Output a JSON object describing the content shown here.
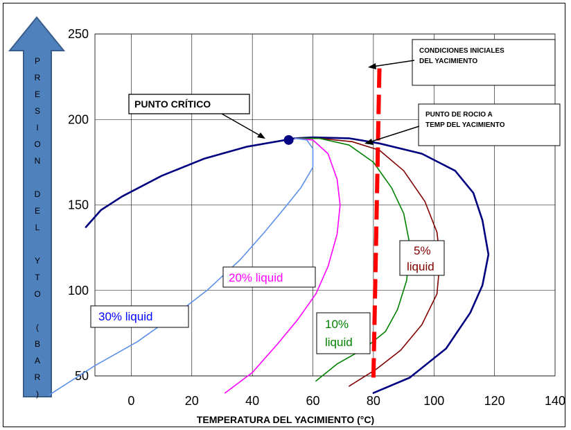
{
  "chart_data": {
    "type": "line",
    "xlabel": "TEMPERATURA DEL YACIMIENTO (°C)",
    "ylabel": "PRESION DEL YTO (BAR)",
    "xlim": [
      -12,
      140
    ],
    "ylim": [
      50,
      250
    ],
    "x_ticks": [
      "0",
      "20",
      "40",
      "60",
      "80",
      "100",
      "120",
      "140"
    ],
    "y_ticks": [
      "50",
      "100",
      "150",
      "200",
      "250"
    ],
    "grid": true,
    "series": [
      {
        "color": "#000080",
        "points": [
          [
            -15,
            137
          ],
          [
            -10,
            147
          ],
          [
            -3,
            155
          ],
          [
            10,
            167
          ],
          [
            24,
            177
          ],
          [
            38,
            184
          ],
          [
            51,
            188
          ],
          [
            54,
            189
          ],
          [
            60,
            189.5
          ],
          [
            72,
            189
          ],
          [
            82,
            186
          ],
          [
            96,
            180
          ],
          [
            107,
            170
          ],
          [
            113,
            157
          ],
          [
            116,
            141
          ],
          [
            118,
            121
          ],
          [
            116,
            103
          ],
          [
            112,
            87
          ],
          [
            104,
            66
          ],
          [
            92,
            49
          ],
          [
            80,
            40
          ]
        ]
      },
      {
        "name": "5% liquid",
        "color": "#800000",
        "points": [
          [
            54,
            189
          ],
          [
            62,
            189
          ],
          [
            73,
            187
          ],
          [
            82,
            182
          ],
          [
            90,
            170
          ],
          [
            97,
            152
          ],
          [
            101,
            134
          ],
          [
            102,
            118
          ],
          [
            101,
            98
          ],
          [
            96,
            80
          ],
          [
            89,
            65
          ],
          [
            81,
            54
          ],
          [
            72,
            44
          ]
        ]
      },
      {
        "name": "10% liquid",
        "color": "#008000",
        "points": [
          [
            54,
            189
          ],
          [
            62,
            189
          ],
          [
            72,
            185
          ],
          [
            80,
            175
          ],
          [
            86,
            160
          ],
          [
            90,
            145
          ],
          [
            92,
            127
          ],
          [
            91,
            106
          ],
          [
            88,
            89
          ],
          [
            84,
            76
          ],
          [
            77,
            66
          ],
          [
            68,
            57
          ],
          [
            61,
            47
          ]
        ]
      },
      {
        "name": "20% liquid",
        "color": "#ff00ff",
        "points": [
          [
            54,
            189
          ],
          [
            60,
            188
          ],
          [
            65,
            180
          ],
          [
            68,
            165
          ],
          [
            69,
            150
          ],
          [
            68,
            133
          ],
          [
            65,
            114
          ],
          [
            61,
            98
          ],
          [
            55,
            83
          ],
          [
            48,
            68
          ],
          [
            40,
            52
          ],
          [
            31,
            40
          ]
        ]
      },
      {
        "name": "30% liquid",
        "color": "#5b8fe8",
        "points": [
          [
            54,
            189
          ],
          [
            58,
            188
          ],
          [
            60,
            183
          ],
          [
            60,
            172
          ],
          [
            56,
            160
          ],
          [
            51,
            149
          ],
          [
            44,
            134
          ],
          [
            36,
            118
          ],
          [
            25,
            100
          ],
          [
            14,
            85
          ],
          [
            2,
            70
          ],
          [
            -12,
            56
          ],
          [
            -27,
            39
          ]
        ]
      }
    ],
    "critical_point": {
      "label": "PUNTO CRÍTICO",
      "x": 52,
      "y": 188
    },
    "reservoir_path": {
      "x": [
        80,
        82
      ],
      "y": [
        49,
        232
      ],
      "color": "#ff0000"
    },
    "annotations": [
      "CONDICIONES INICIALES DEL YACIMIENTO",
      "PUNTO DE ROCIO A TEMP DEL YACIMIENTO"
    ]
  },
  "text": {
    "critical_label": "PUNTO CRÍTICO",
    "callout_initial_1": "CONDICIONES INICIALES",
    "callout_initial_2": "DEL YACIMIENTO",
    "callout_dew_1": "PUNTO DE ROCIO  A",
    "callout_dew_2": "TEMP DEL YACIMIENTO",
    "label_30": "30% liquid",
    "label_20": "20% liquid",
    "label_10_1": "10%",
    "label_10_2": "liquid",
    "label_5_1": "5%",
    "label_5_2": "liquid",
    "xlabel": "TEMPERATURA DEL YACIMIENTO (°C)",
    "ylabel_chars": [
      "P",
      "R",
      "E",
      "S",
      "I",
      "O",
      "N",
      "",
      "D",
      "E",
      "L",
      "",
      "Y",
      "T",
      "O",
      "",
      "(",
      "B",
      "A",
      "R",
      ")"
    ]
  },
  "colors": {
    "arrow_fill": "#4f81bd",
    "arrow_stroke": "#385d8a",
    "grid": "#000000",
    "path": "#ff0000",
    "critical_point": "#000080"
  }
}
